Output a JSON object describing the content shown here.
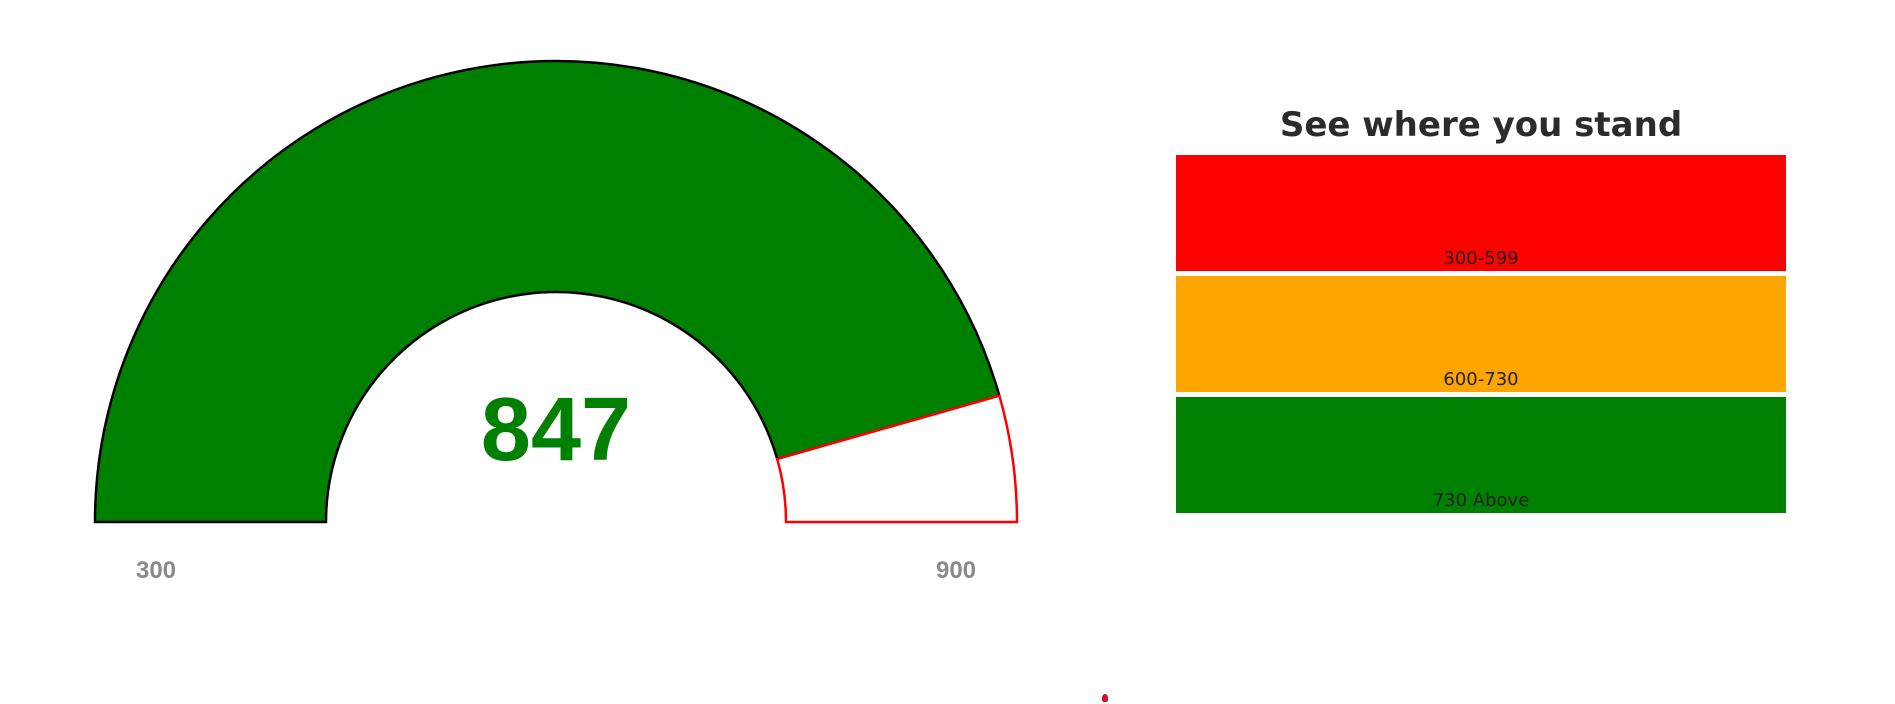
{
  "chart_data": {
    "type": "gauge",
    "min": 300,
    "max": 900,
    "value": 847,
    "value_label": "847",
    "min_label": "300",
    "max_label": "900",
    "fill_color": "#008000",
    "remainder_outline_color": "#ff0000",
    "value_color": "#008000"
  },
  "legend": {
    "title": "See where you stand",
    "bands": [
      {
        "label": "300-599",
        "color": "#ff0000"
      },
      {
        "label": "600-730",
        "color": "#ffa500"
      },
      {
        "label": "730 Above",
        "color": "#008000"
      }
    ]
  }
}
